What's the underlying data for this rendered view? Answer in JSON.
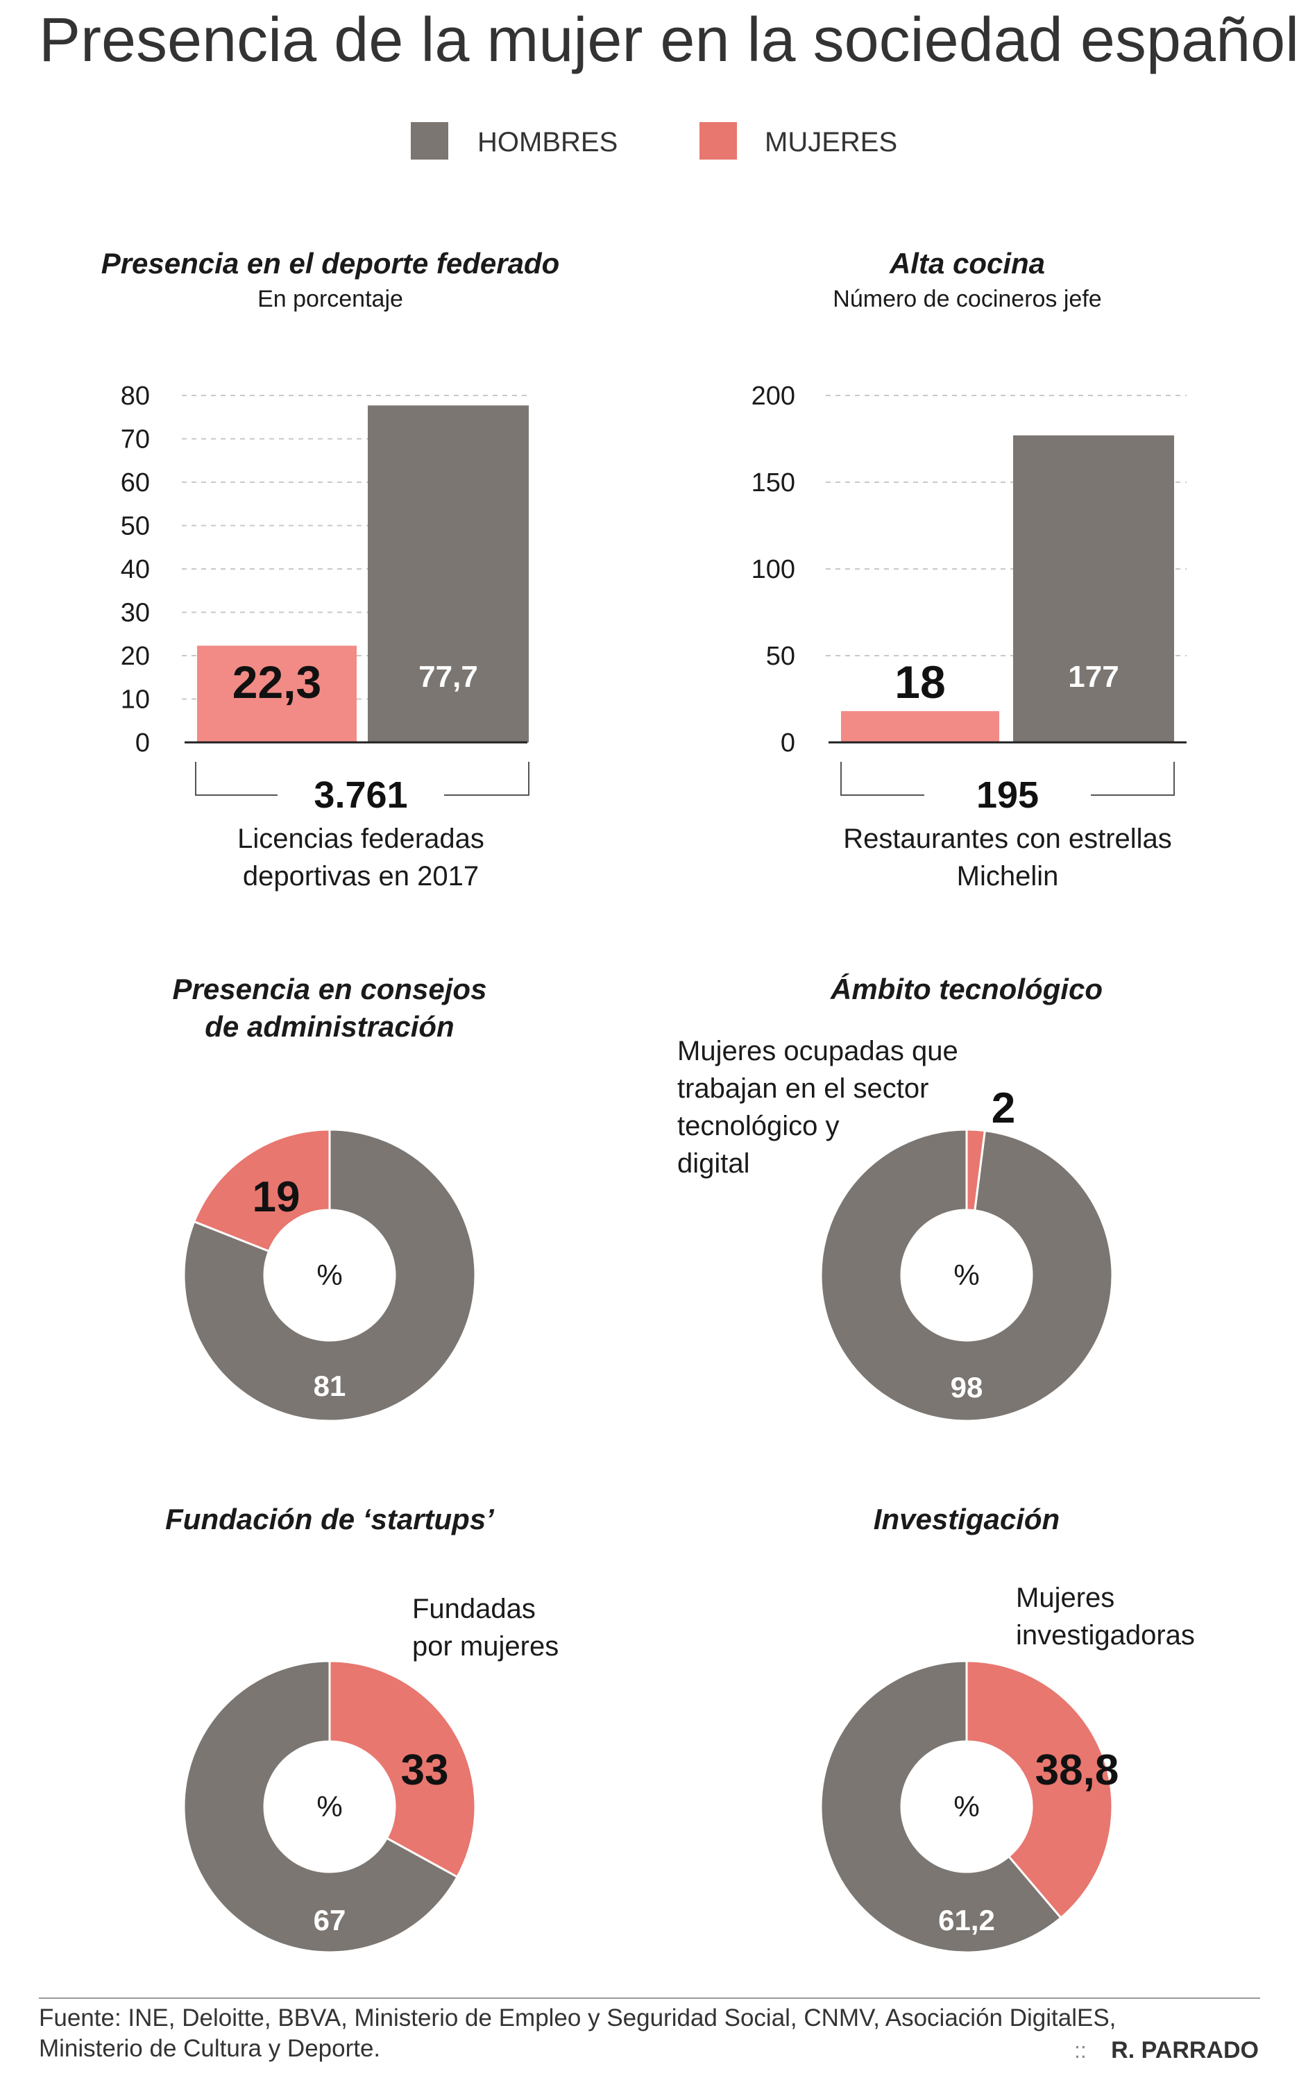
{
  "title": "Presencia de la mujer en la sociedad española",
  "colors": {
    "hombres": "#7b7671",
    "mujeres": "#e8776f",
    "mujeres_bar": "#f28b86",
    "text": "#1a1a1a",
    "grid": "#c8c8c8"
  },
  "legend": {
    "hombres": "HOMBRES",
    "mujeres": "MUJERES"
  },
  "chart_data": [
    {
      "id": "deporte",
      "type": "bar",
      "title": "Presencia en el deporte federado",
      "subtitle": "En porcentaje",
      "categories": [
        "MUJERES",
        "HOMBRES"
      ],
      "series": [
        {
          "name": "Porcentaje",
          "values": [
            22.3,
            77.7
          ]
        }
      ],
      "value_labels": [
        "22,3",
        "77,7"
      ],
      "yticks": [
        0,
        10,
        20,
        30,
        40,
        50,
        60,
        70,
        80
      ],
      "ylim": [
        0,
        80
      ],
      "total": "3.761",
      "total_caption_1": "Licencias federadas",
      "total_caption_2": "deportivas en 2017"
    },
    {
      "id": "cocina",
      "type": "bar",
      "title": "Alta cocina",
      "subtitle": "Número de cocineros jefe",
      "categories": [
        "MUJERES",
        "HOMBRES"
      ],
      "series": [
        {
          "name": "Cocineros jefe",
          "values": [
            18,
            177
          ]
        }
      ],
      "value_labels": [
        "18",
        "177"
      ],
      "yticks": [
        0,
        50,
        100,
        150,
        200
      ],
      "ylim": [
        0,
        200
      ],
      "total": "195",
      "total_caption_1": "Restaurantes con estrellas",
      "total_caption_2": "Michelin"
    },
    {
      "id": "consejos",
      "type": "pie",
      "title_1": "Presencia en consejos",
      "title_2": "de administración",
      "labels": [
        "MUJERES",
        "HOMBRES"
      ],
      "values": [
        19,
        81
      ],
      "value_labels": [
        "19",
        "81"
      ],
      "unit": "%"
    },
    {
      "id": "tecnologico",
      "type": "pie",
      "title_1": "Ámbito tecnológico",
      "annotation": [
        "Mujeres ocupadas que",
        "trabajan en el sector",
        "tecnológico y",
        "digital"
      ],
      "labels": [
        "MUJERES",
        "HOMBRES"
      ],
      "values": [
        2,
        98
      ],
      "value_labels": [
        "2",
        "98"
      ],
      "unit": "%"
    },
    {
      "id": "startups",
      "type": "pie",
      "title_1": "Fundación de ‘startups’",
      "annotation": [
        "Fundadas",
        "por mujeres"
      ],
      "labels": [
        "MUJERES",
        "HOMBRES"
      ],
      "values": [
        33,
        67
      ],
      "value_labels": [
        "33",
        "67"
      ],
      "unit": "%"
    },
    {
      "id": "investigacion",
      "type": "pie",
      "title_1": "Investigación",
      "annotation": [
        "Mujeres",
        "investigadoras"
      ],
      "labels": [
        "MUJERES",
        "HOMBRES"
      ],
      "values": [
        38.8,
        61.2
      ],
      "value_labels": [
        "38,8",
        "61,2"
      ],
      "unit": "%"
    }
  ],
  "footer": {
    "source_1": "Fuente: INE, Deloitte, BBVA, Ministerio de Empleo y Seguridad Social, CNMV, Asociación DigitalES,",
    "source_2": "Ministerio de Cultura y Deporte.",
    "credit_mark": "::",
    "credit": "R. PARRADO"
  }
}
